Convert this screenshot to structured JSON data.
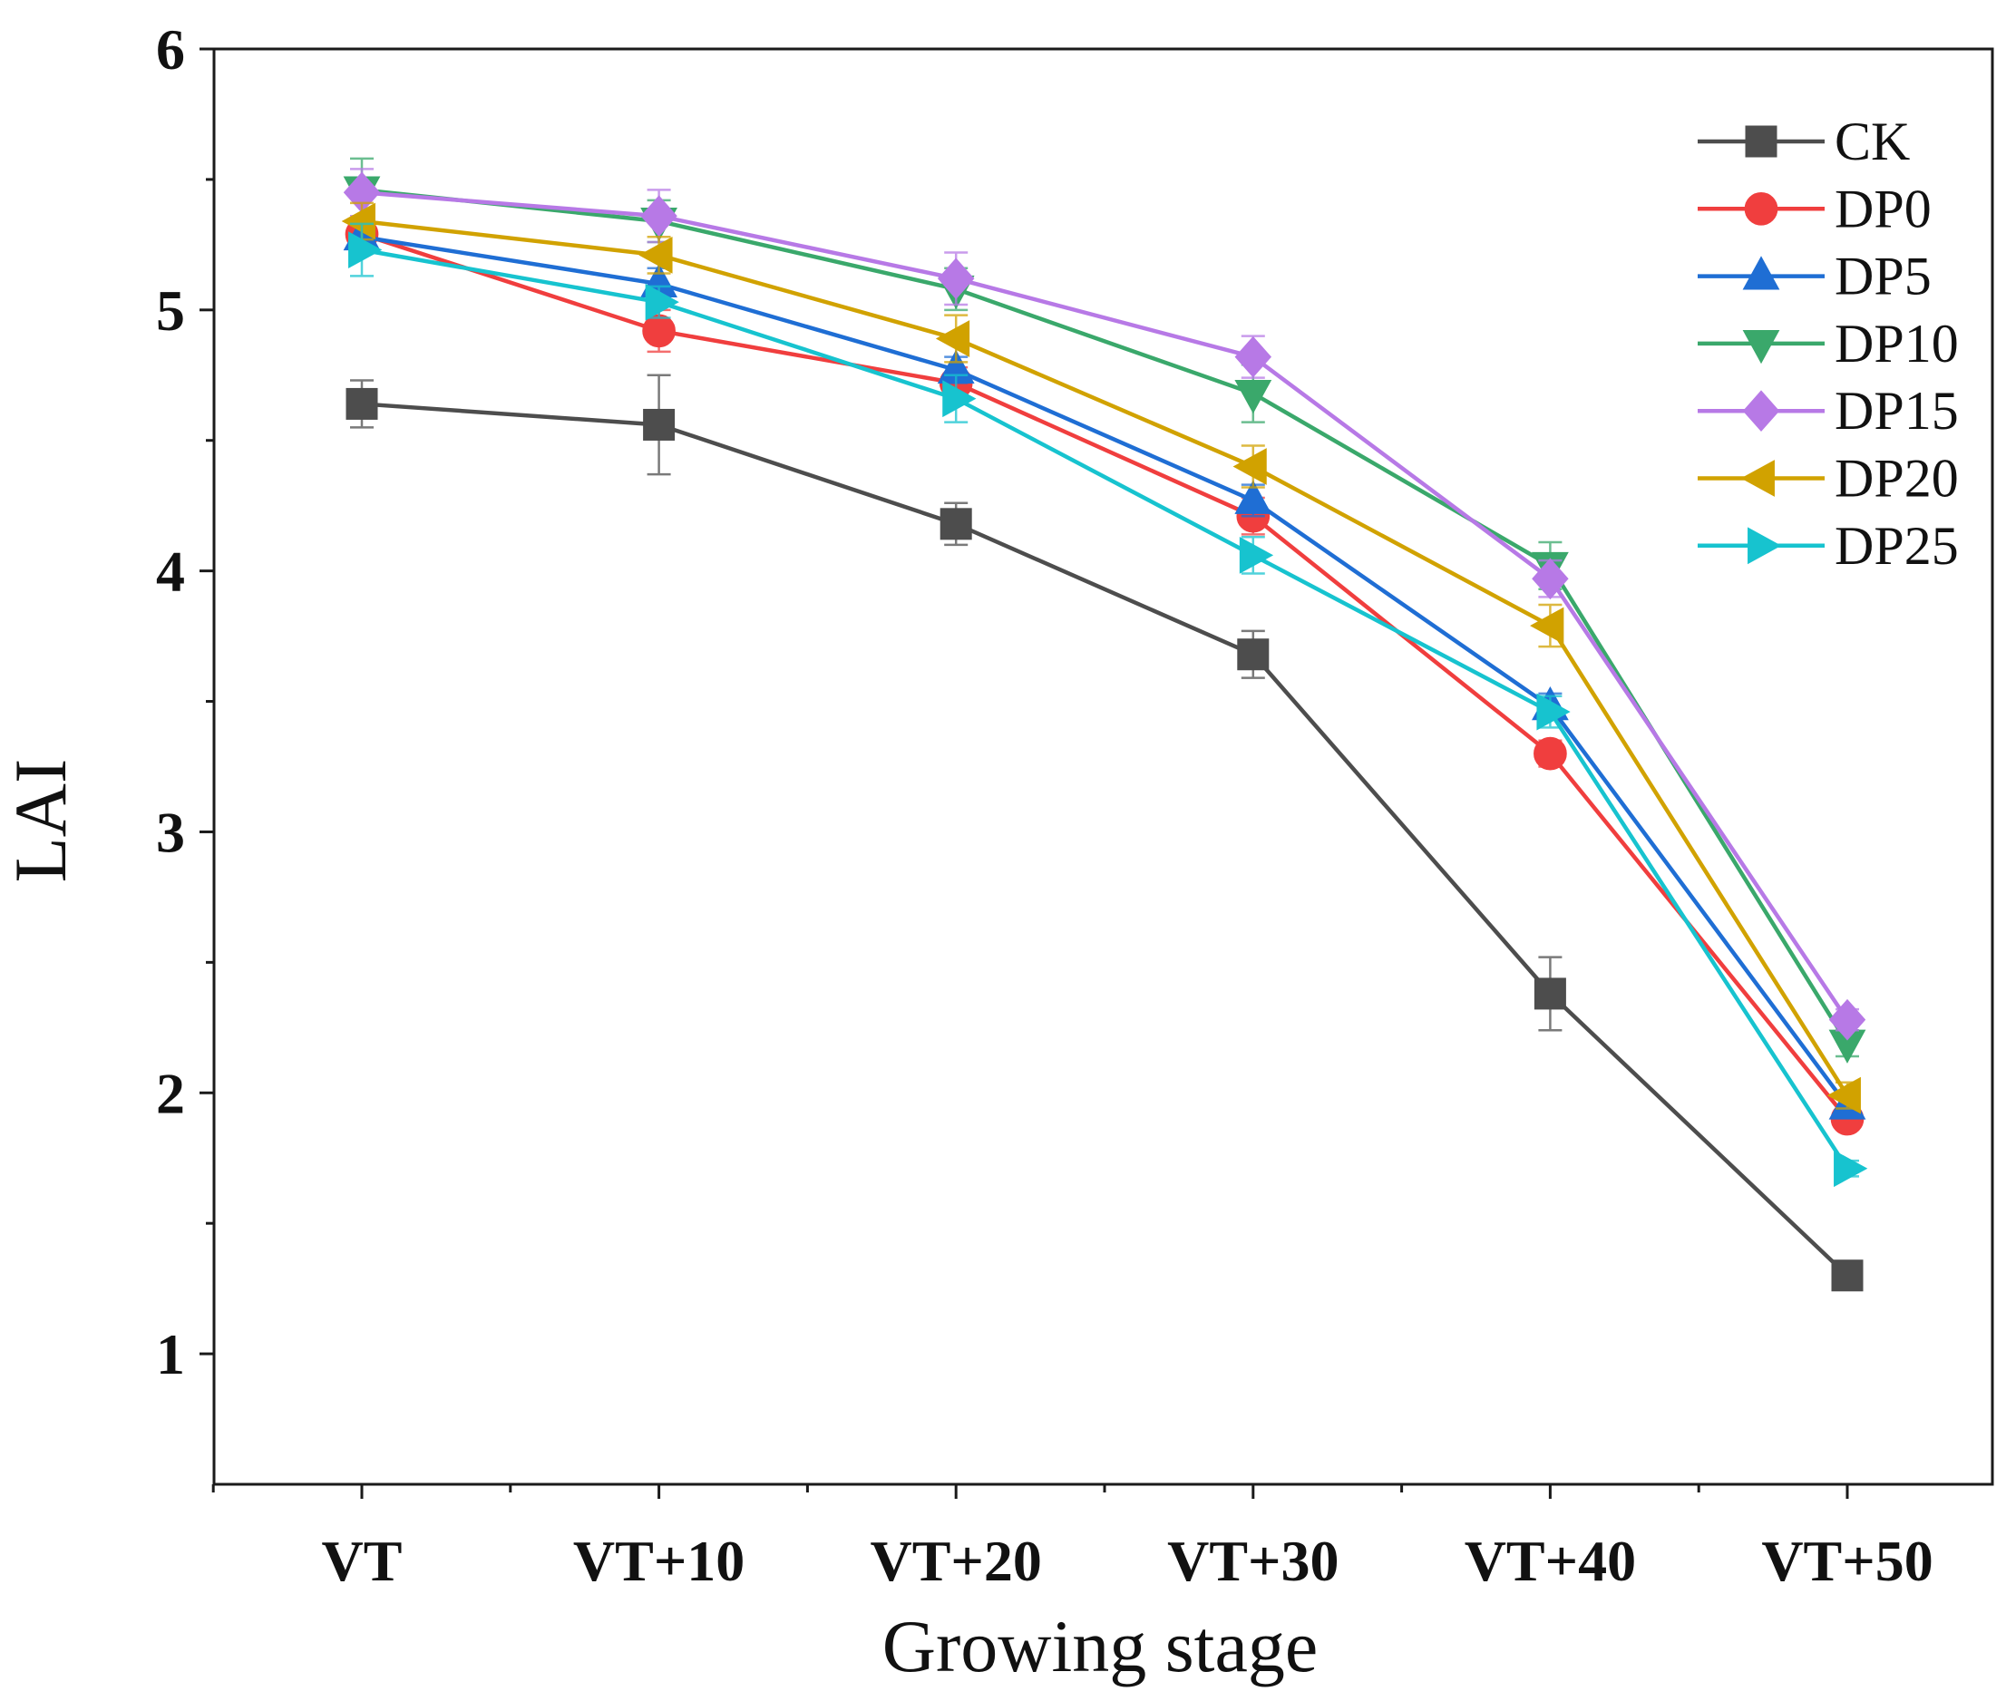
{
  "chart_data": {
    "type": "line",
    "title": "",
    "xlabel": "Growing stage",
    "ylabel": "LAI",
    "categories": [
      "VT",
      "VT+10",
      "VT+20",
      "VT+30",
      "VT+40",
      "VT+50"
    ],
    "ylim": [
      0.5,
      6
    ],
    "yticks": [
      1,
      2,
      3,
      4,
      5,
      6
    ],
    "grid": false,
    "legend_position": "top-right",
    "series": [
      {
        "name": "CK",
        "color": "#4d4d4d",
        "marker": "square",
        "values": [
          4.64,
          4.56,
          4.18,
          3.68,
          2.38,
          1.3
        ],
        "errors": [
          0.09,
          0.19,
          0.08,
          0.09,
          0.14,
          0.0
        ]
      },
      {
        "name": "DP0",
        "color": "#f03e3e",
        "marker": "circle",
        "values": [
          5.29,
          4.92,
          4.72,
          4.21,
          3.3,
          1.9
        ],
        "errors": [
          0.05,
          0.08,
          0.06,
          0.07,
          0.05,
          0.04
        ]
      },
      {
        "name": "DP5",
        "color": "#1f6ed4",
        "marker": "triangle-up",
        "values": [
          5.28,
          5.1,
          4.77,
          4.27,
          3.48,
          1.95
        ],
        "errors": [
          0.05,
          0.06,
          0.05,
          0.06,
          0.05,
          0.04
        ]
      },
      {
        "name": "DP10",
        "color": "#3aa86b",
        "marker": "triangle-down",
        "values": [
          5.46,
          5.34,
          5.08,
          4.68,
          4.02,
          2.19
        ],
        "errors": [
          0.12,
          0.08,
          0.08,
          0.11,
          0.09,
          0.05
        ]
      },
      {
        "name": "DP15",
        "color": "#b779e6",
        "marker": "diamond",
        "values": [
          5.45,
          5.36,
          5.12,
          4.82,
          3.97,
          2.28
        ],
        "errors": [
          0.09,
          0.1,
          0.1,
          0.08,
          0.07,
          0.04
        ]
      },
      {
        "name": "DP20",
        "color": "#d1a200",
        "marker": "triangle-left",
        "values": [
          5.34,
          5.21,
          4.89,
          4.4,
          3.79,
          1.99
        ],
        "errors": [
          0.07,
          0.07,
          0.09,
          0.08,
          0.08,
          0.05
        ]
      },
      {
        "name": "DP25",
        "color": "#17c3cf",
        "marker": "triangle-right",
        "values": [
          5.23,
          5.03,
          4.66,
          4.06,
          3.46,
          1.71
        ],
        "errors": [
          0.1,
          0.06,
          0.09,
          0.07,
          0.06,
          0.03
        ]
      }
    ]
  }
}
